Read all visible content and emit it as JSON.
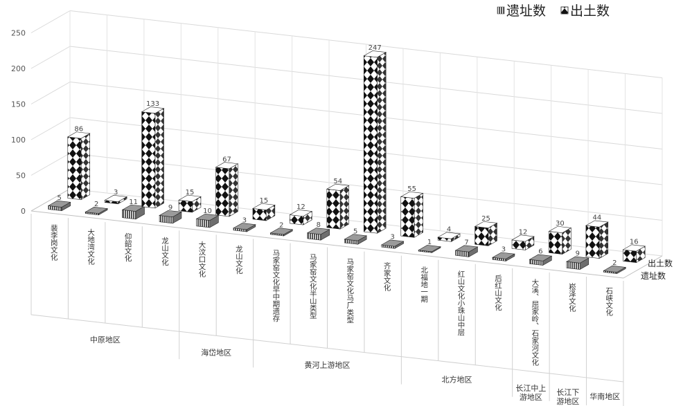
{
  "chart_data": {
    "type": "bar",
    "title": "",
    "xlabel": "",
    "ylabel": "",
    "ylim": [
      0,
      250
    ],
    "y_ticks": [
      "0",
      "50",
      "100",
      "150",
      "200",
      "250"
    ],
    "categories": [
      "裴李岗文化",
      "大地湾文化",
      "仰韶文化",
      "龙山文化",
      "大汶口文化",
      "龙山文化",
      "马家窑文化早中期遗存",
      "马家窑文化半山类型",
      "马家窑文化马厂类型",
      "齐家文化",
      "北福地一期",
      "红山文化小珠山中层",
      "后红山文化",
      "大溪、屈家岭、石家河文化",
      "崧泽文化",
      "石峡文化"
    ],
    "groups": [
      {
        "name": "中原地区",
        "count": 4
      },
      {
        "name": "海岱地区",
        "count": 2
      },
      {
        "name": "黄河上游地区",
        "count": 4
      },
      {
        "name": "北方地区",
        "count": 3
      },
      {
        "name": "长江中上游地区",
        "count": 1
      },
      {
        "name": "长江下游地区",
        "count": 1
      },
      {
        "name": "华南地区",
        "count": 1
      }
    ],
    "series": [
      {
        "name": "遗址数",
        "values": [
          5,
          2,
          11,
          9,
          10,
          3,
          2,
          8,
          5,
          3,
          1,
          7,
          3,
          6,
          9,
          2
        ]
      },
      {
        "name": "出土数",
        "values": [
          86,
          3,
          133,
          15,
          67,
          15,
          12,
          54,
          247,
          55,
          4,
          25,
          12,
          30,
          44,
          16
        ]
      }
    ],
    "legend": {
      "position": "top-right",
      "items": [
        "遗址数",
        "出土数"
      ]
    },
    "depth_axis_labels": [
      "出土数",
      "遗址数"
    ],
    "grid": true
  }
}
